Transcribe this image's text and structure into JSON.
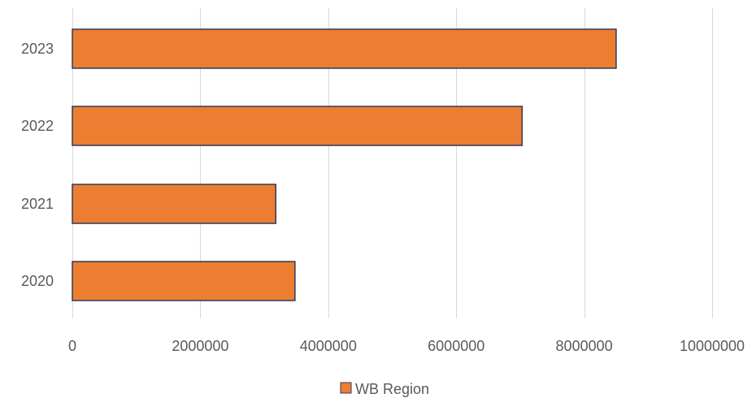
{
  "chart_data": {
    "type": "bar",
    "orientation": "horizontal",
    "categories": [
      "2020",
      "2021",
      "2022",
      "2023"
    ],
    "series": [
      {
        "name": "WB Region",
        "values": [
          3480000,
          3180000,
          7030000,
          8500000
        ],
        "color": "#ed7d31",
        "border_color": "#2f3a5a"
      }
    ],
    "x_ticks": [
      "0",
      "2000000",
      "4000000",
      "6000000",
      "8000000",
      "10000000"
    ],
    "xlim": [
      0,
      10000000
    ],
    "grid": true,
    "legend_position": "bottom"
  }
}
